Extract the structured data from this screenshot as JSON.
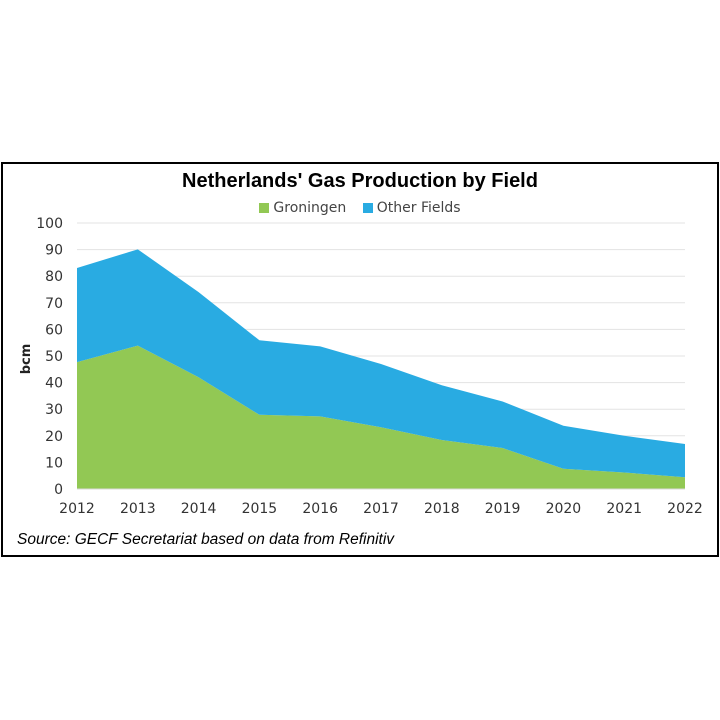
{
  "chart_data": {
    "type": "area",
    "stacked": true,
    "title": "Netherlands' Gas Production by Field",
    "ylabel": "bcm",
    "xlabel": "",
    "ylim": [
      0,
      100
    ],
    "yticks": [
      0,
      10,
      20,
      30,
      40,
      50,
      60,
      70,
      80,
      90,
      100
    ],
    "grid": true,
    "legend": "top",
    "categories": [
      "2012",
      "2013",
      "2014",
      "2015",
      "2016",
      "2017",
      "2018",
      "2019",
      "2020",
      "2021",
      "2022"
    ],
    "series": [
      {
        "name": "Groningen",
        "color": "#92c854",
        "values": [
          47.7,
          53.9,
          42.0,
          27.9,
          27.3,
          23.2,
          18.4,
          15.4,
          7.6,
          6.2,
          4.4
        ]
      },
      {
        "name": "Other Fields",
        "color": "#29abe2",
        "values": [
          35.4,
          36.2,
          32.0,
          28.0,
          26.3,
          23.8,
          20.6,
          17.5,
          16.2,
          13.8,
          12.5
        ]
      }
    ],
    "source": "Source: GECF Secretariat based on data from Refinitiv"
  }
}
